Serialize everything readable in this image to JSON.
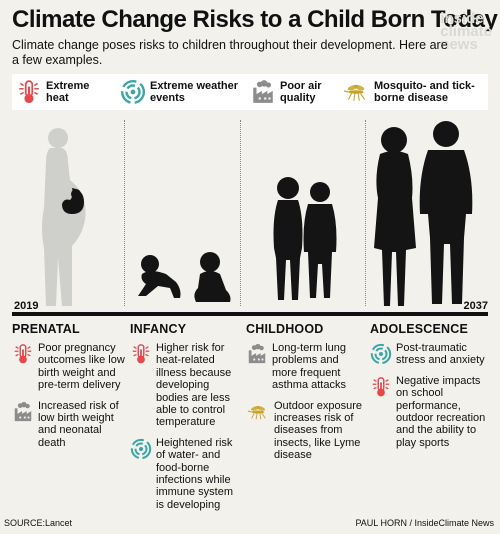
{
  "header": {
    "title": "Climate Change Risks to a Child Born Today",
    "subtitle": "Climate change poses risks to children throughout their development. Here are a few examples.",
    "watermark": [
      "inside",
      "climate",
      "news"
    ]
  },
  "legend": [
    {
      "icon": "thermometer-icon",
      "label": "Extreme heat"
    },
    {
      "icon": "storm-icon",
      "label": "Extreme weather events"
    },
    {
      "icon": "factory-icon",
      "label": "Poor air quality"
    },
    {
      "icon": "mosquito-icon",
      "label": "Mosquito- and tick-borne disease"
    }
  ],
  "timeline": {
    "start_year": "2019",
    "end_year": "2037"
  },
  "stages": [
    {
      "name": "PRENATAL",
      "risks": [
        {
          "icon": "thermometer-icon",
          "text": "Poor pregnancy outcomes like low birth weight and pre-term delivery"
        },
        {
          "icon": "factory-icon",
          "text": "Increased risk of low birth weight and neonatal death"
        }
      ]
    },
    {
      "name": "INFANCY",
      "risks": [
        {
          "icon": "thermometer-icon",
          "text": "Higher risk for heat-related illness because developing bodies are less able to control temperature"
        },
        {
          "icon": "storm-icon",
          "text": "Heightened risk of water- and food-borne infections while immune system is developing"
        }
      ]
    },
    {
      "name": "CHILDHOOD",
      "risks": [
        {
          "icon": "factory-icon",
          "text": "Long-term lung problems and more frequent asthma attacks"
        },
        {
          "icon": "mosquito-icon",
          "text": "Outdoor exposure increases risk of diseases from insects, like Lyme disease"
        }
      ]
    },
    {
      "name": "ADOLESCENCE",
      "risks": [
        {
          "icon": "storm-icon",
          "text": "Post-traumatic stress and anxiety"
        },
        {
          "icon": "thermometer-icon",
          "text": "Negative impacts on school performance, outdoor recreation and the ability to play sports"
        }
      ]
    }
  ],
  "footer": {
    "source": "SOURCE:Lancet",
    "credit": "PAUL HORN / InsideClimate News"
  },
  "colors": {
    "heat": "#e8474b",
    "storm": "#3aa6a6",
    "factory": "#8c8c8c",
    "mosquito": "#c9a227",
    "silhouette": "#141414",
    "pregnant_silhouette": "#cfcfcc"
  }
}
